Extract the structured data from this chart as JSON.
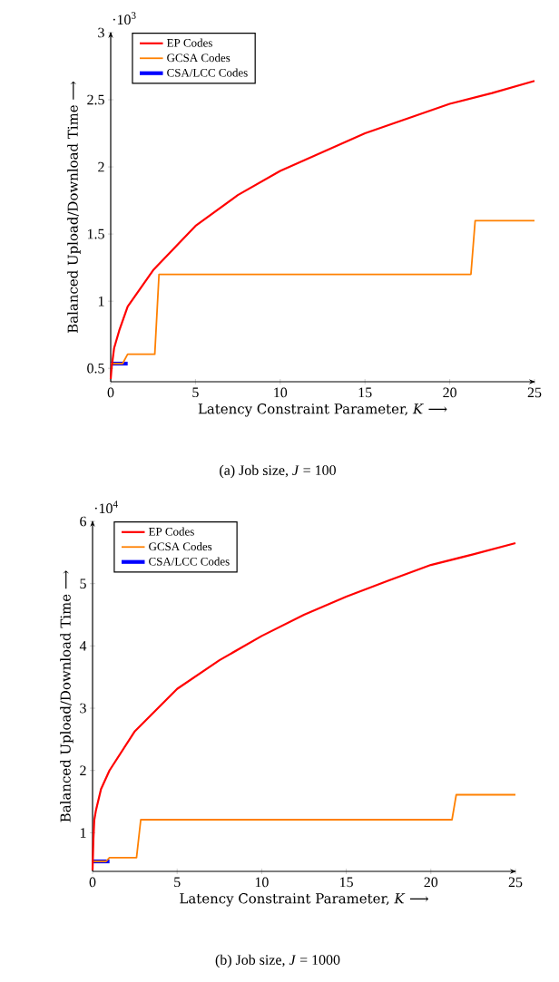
{
  "chart_data": [
    {
      "type": "line",
      "title": "(a) Job size, *J* = 100",
      "xlabel": "Latency Constraint Parameter, *K* ⟶",
      "ylabel": "Balanced Upload/Download Time ⟶",
      "annotations": [
        "·10$^{3}$"
      ],
      "legend": "top left",
      "xlim": [
        0,
        25
      ],
      "ylim": [
        0.4,
        3
      ],
      "xticks": [
        0,
        5,
        10,
        15,
        20,
        25
      ],
      "yticks": [
        0.5,
        1,
        1.5,
        2,
        2.5,
        3
      ],
      "series": [
        {
          "name": "EP Codes",
          "color": "#ff0000",
          "x": [
            0,
            0.05,
            0.2,
            0.5,
            1,
            2.5,
            5,
            7.5,
            10,
            12.5,
            15,
            17.5,
            20,
            22.5,
            25
          ],
          "values": [
            0.42,
            0.5,
            0.65,
            0.78,
            0.96,
            1.23,
            1.56,
            1.79,
            1.97,
            2.11,
            2.25,
            2.36,
            2.47,
            2.55,
            2.64
          ]
        },
        {
          "name": "GCSA Codes",
          "color": "#ff8000",
          "x": [
            0,
            0.7,
            1,
            2.6,
            2.85,
            21.25,
            21.5,
            25
          ],
          "values": [
            0.535,
            0.535,
            0.605,
            0.605,
            1.2,
            1.2,
            1.6,
            1.6
          ]
        },
        {
          "name": "CSA/LCC Codes",
          "color": "#0000ff",
          "x": [
            0,
            1
          ],
          "values": [
            0.535,
            0.535
          ]
        }
      ]
    },
    {
      "type": "line",
      "title": "(b) Job size, *J* = 1000",
      "xlabel": "Latency Constraint Parameter, *K* ⟶",
      "ylabel": "Balanced Upload/Download Time ⟶",
      "annotations": [
        "·10$^{4}$"
      ],
      "legend": "top left",
      "xlim": [
        0,
        25
      ],
      "ylim": [
        0.38,
        6
      ],
      "xticks": [
        0,
        5,
        10,
        15,
        20,
        25
      ],
      "yticks": [
        1,
        2,
        3,
        4,
        5,
        6
      ],
      "series": [
        {
          "name": "EP Codes",
          "color": "#ff0000",
          "x": [
            0,
            0.05,
            0.1,
            0.2,
            0.5,
            1,
            2.5,
            5,
            7.5,
            10,
            12.5,
            15,
            17.5,
            20,
            22.5,
            25
          ],
          "values": [
            0.4,
            0.9,
            1.2,
            1.36,
            1.7,
            2.0,
            2.63,
            3.31,
            3.77,
            4.16,
            4.5,
            4.79,
            5.05,
            5.3,
            5.47,
            5.65
          ]
        },
        {
          "name": "GCSA Codes",
          "color": "#ff8000",
          "x": [
            0,
            0.8,
            1,
            2.6,
            2.85,
            21.25,
            21.5,
            25
          ],
          "values": [
            0.54,
            0.54,
            0.6,
            0.6,
            1.21,
            1.21,
            1.61,
            1.61
          ]
        },
        {
          "name": "CSA/LCC Codes",
          "color": "#0000ff",
          "x": [
            0,
            1
          ],
          "values": [
            0.54,
            0.54
          ]
        }
      ]
    }
  ]
}
